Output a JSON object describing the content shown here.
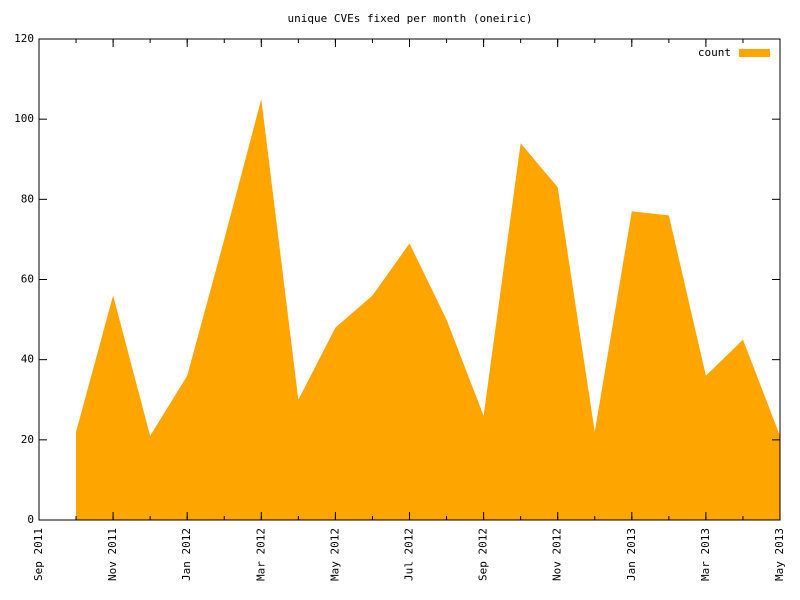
{
  "chart_data": {
    "type": "area",
    "title": "unique CVEs fixed per month (oneiric)",
    "x": [
      "2011-10",
      "2011-11",
      "2011-12",
      "2012-01",
      "2012-02",
      "2012-03",
      "2012-04",
      "2012-05",
      "2012-06",
      "2012-07",
      "2012-08",
      "2012-09",
      "2012-10",
      "2012-11",
      "2012-12",
      "2013-01",
      "2013-02",
      "2013-03",
      "2013-04",
      "2013-05"
    ],
    "series": [
      {
        "name": "count",
        "color": "#ffa500",
        "values": [
          22,
          56,
          21,
          36,
          70,
          105,
          30,
          48,
          56,
          69,
          50,
          26,
          94,
          83,
          22,
          77,
          76,
          36,
          45,
          21
        ]
      }
    ],
    "xlim": [
      "2011-09",
      "2013-05"
    ],
    "xticks": [
      {
        "value": "2011-09",
        "label": "Sep 2011"
      },
      {
        "value": "2011-11",
        "label": "Nov 2011"
      },
      {
        "value": "2012-01",
        "label": "Jan 2012"
      },
      {
        "value": "2012-03",
        "label": "Mar 2012"
      },
      {
        "value": "2012-05",
        "label": "May 2012"
      },
      {
        "value": "2012-07",
        "label": "Jul 2012"
      },
      {
        "value": "2012-09",
        "label": "Sep 2012"
      },
      {
        "value": "2012-11",
        "label": "Nov 2012"
      },
      {
        "value": "2013-01",
        "label": "Jan 2013"
      },
      {
        "value": "2013-03",
        "label": "Mar 2013"
      },
      {
        "value": "2013-05",
        "label": "May 2013"
      }
    ],
    "ylim": [
      0,
      120
    ],
    "yticks": [
      0,
      20,
      40,
      60,
      80,
      100,
      120
    ],
    "legend": "top-right"
  }
}
